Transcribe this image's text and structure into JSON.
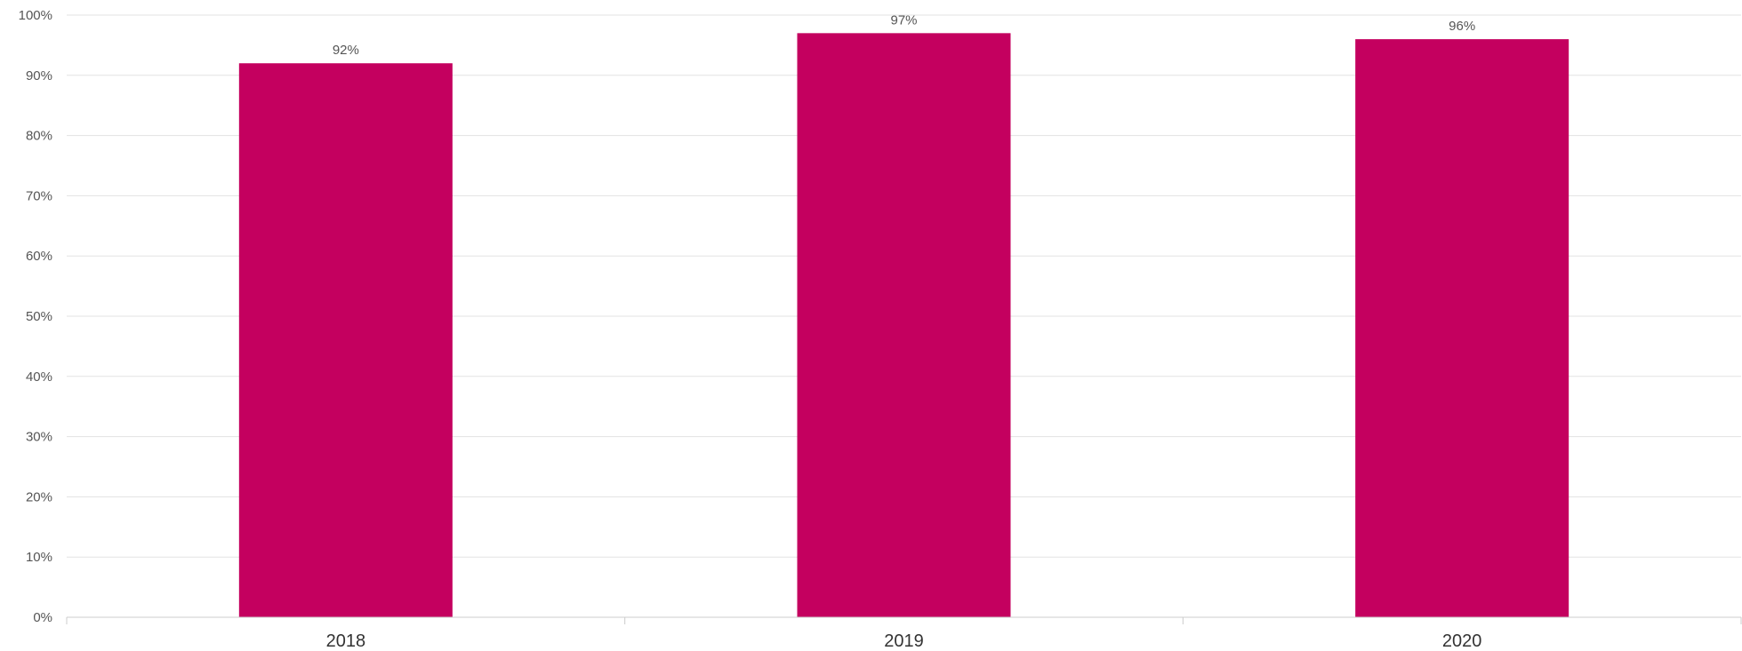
{
  "chart_data": {
    "type": "bar",
    "categories": [
      "2018",
      "2019",
      "2020"
    ],
    "values": [
      92,
      97,
      96
    ],
    "data_labels": [
      "92%",
      "97%",
      "96%"
    ],
    "ylim": [
      0,
      100
    ],
    "yticks": [
      0,
      10,
      20,
      30,
      40,
      50,
      60,
      70,
      80,
      90,
      100
    ],
    "ytick_labels": [
      "0%",
      "10%",
      "20%",
      "30%",
      "40%",
      "50%",
      "60%",
      "70%",
      "80%",
      "90%",
      "100%"
    ],
    "grid": true,
    "legend": "none",
    "bar_color": "#C4005F"
  }
}
